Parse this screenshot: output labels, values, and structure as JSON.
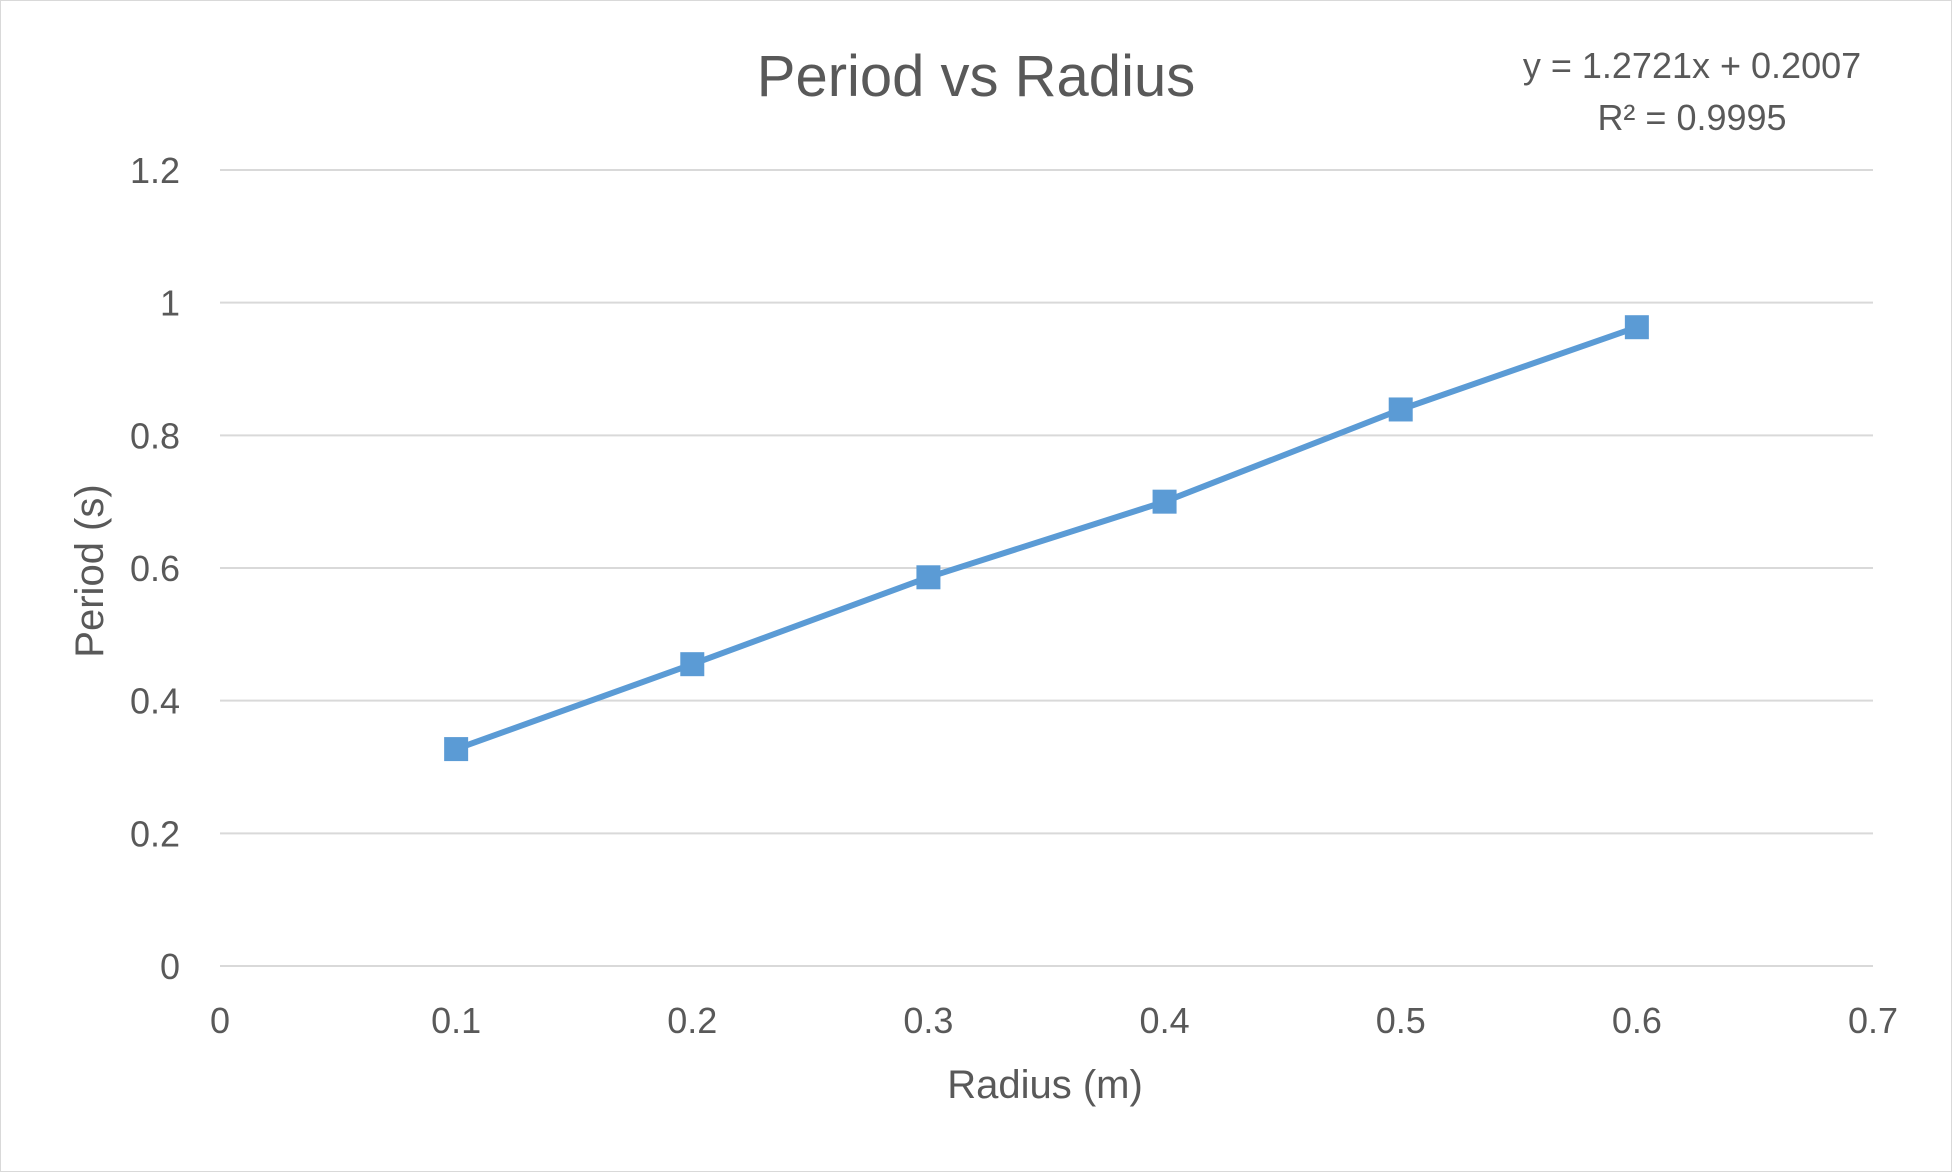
{
  "chart_data": {
    "type": "line",
    "title": "Period vs Radius",
    "xlabel": "Radius (m)",
    "ylabel": "Period (s)",
    "xlim": [
      0,
      0.7
    ],
    "ylim": [
      0,
      1.2
    ],
    "x_ticks": [
      "0",
      "0.1",
      "0.2",
      "0.3",
      "0.4",
      "0.5",
      "0.6",
      "0.7"
    ],
    "y_ticks": [
      "0",
      "0.2",
      "0.4",
      "0.6",
      "0.8",
      "1",
      "1.2"
    ],
    "grid": true,
    "legend": "none",
    "series": [
      {
        "color": "#5b9bd5",
        "marker": "square",
        "x": [
          0.1,
          0.2,
          0.3,
          0.4,
          0.5,
          0.6
        ],
        "y": [
          0.327,
          0.455,
          0.586,
          0.7,
          0.839,
          0.963
        ]
      }
    ],
    "trendline": {
      "equation": "y = 1.2721x + 0.2007",
      "r_squared": "R² = 0.9995"
    }
  }
}
